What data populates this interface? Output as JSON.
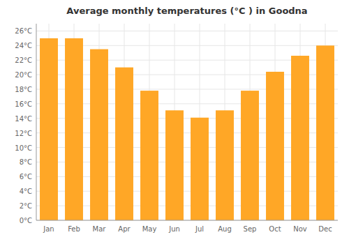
{
  "chart_data": {
    "type": "bar",
    "title": "Average monthly temperatures (°C ) in Goodna",
    "categories": [
      "Jan",
      "Feb",
      "Mar",
      "Apr",
      "May",
      "Jun",
      "Jul",
      "Aug",
      "Sep",
      "Oct",
      "Nov",
      "Dec"
    ],
    "values": [
      25.0,
      25.0,
      23.5,
      21.0,
      17.8,
      15.1,
      14.1,
      15.1,
      17.8,
      20.4,
      22.6,
      24.0
    ],
    "color": "#FFA726",
    "ylim": [
      0,
      27
    ],
    "yticks": [
      {
        "value": 0,
        "label": "0°C"
      },
      {
        "value": 2,
        "label": "2°C"
      },
      {
        "value": 4,
        "label": "4°C"
      },
      {
        "value": 6,
        "label": "6°C"
      },
      {
        "value": 8,
        "label": "8°C"
      },
      {
        "value": 10,
        "label": "10°C"
      },
      {
        "value": 12,
        "label": "12°C"
      },
      {
        "value": 14,
        "label": "14°C"
      },
      {
        "value": 16,
        "label": "16°C"
      },
      {
        "value": 18,
        "label": "18°C"
      },
      {
        "value": 20,
        "label": "20°C"
      },
      {
        "value": 22,
        "label": "22°C"
      },
      {
        "value": 24,
        "label": "24°C"
      },
      {
        "value": 26,
        "label": "26°C"
      }
    ],
    "grid": true
  }
}
